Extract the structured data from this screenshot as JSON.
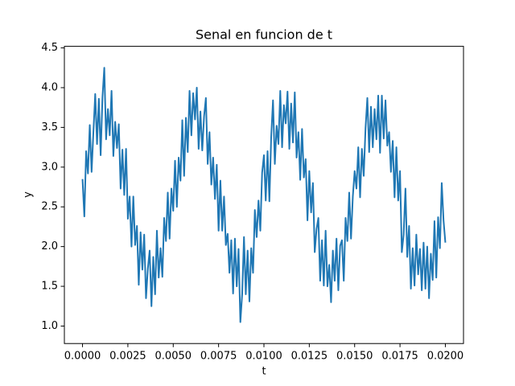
{
  "chart_data": {
    "type": "line",
    "title": "Senal en funcion de t",
    "xlabel": "t",
    "ylabel": "y",
    "x": [
      0,
      0.0001,
      0.0002,
      0.0003,
      0.0004,
      0.0005,
      0.0006,
      0.0007,
      0.0008,
      0.0009,
      0.001,
      0.0011,
      0.0012,
      0.0013,
      0.0014,
      0.0015,
      0.0016,
      0.0017,
      0.0018,
      0.0019,
      0.002,
      0.0021,
      0.0022,
      0.0023,
      0.0024,
      0.0025,
      0.0026,
      0.0027,
      0.0028,
      0.0029,
      0.003,
      0.0031,
      0.0032,
      0.0033,
      0.0034,
      0.0035,
      0.0036,
      0.0037,
      0.0038,
      0.0039,
      0.004,
      0.0041,
      0.0042,
      0.0043,
      0.0044,
      0.0045,
      0.0046,
      0.0047,
      0.0048,
      0.0049,
      0.005,
      0.0051,
      0.0052,
      0.0053,
      0.0054,
      0.0055,
      0.0056,
      0.0057,
      0.0058,
      0.0059,
      0.006,
      0.0061,
      0.0062,
      0.0063,
      0.0064,
      0.0065,
      0.0066,
      0.0067,
      0.0068,
      0.0069,
      0.007,
      0.0071,
      0.0072,
      0.0073,
      0.0074,
      0.0075,
      0.0076,
      0.0077,
      0.0078,
      0.0079,
      0.008,
      0.0081,
      0.0082,
      0.0083,
      0.0084,
      0.0085,
      0.0086,
      0.0087,
      0.0088,
      0.0089,
      0.009,
      0.0091,
      0.0092,
      0.0093,
      0.0094,
      0.0095,
      0.0096,
      0.0097,
      0.0098,
      0.0099,
      0.01,
      0.0101,
      0.0102,
      0.0103,
      0.0104,
      0.0105,
      0.0106,
      0.0107,
      0.0108,
      0.0109,
      0.011,
      0.0111,
      0.0112,
      0.0113,
      0.0114,
      0.0115,
      0.0116,
      0.0117,
      0.0118,
      0.0119,
      0.012,
      0.0121,
      0.0122,
      0.0123,
      0.0124,
      0.0125,
      0.0126,
      0.0127,
      0.0128,
      0.0129,
      0.013,
      0.0131,
      0.0132,
      0.0133,
      0.0134,
      0.0135,
      0.0136,
      0.0137,
      0.0138,
      0.0139,
      0.014,
      0.0141,
      0.0142,
      0.0143,
      0.0144,
      0.0145,
      0.0146,
      0.0147,
      0.0148,
      0.0149,
      0.015,
      0.0151,
      0.0152,
      0.0153,
      0.0154,
      0.0155,
      0.0156,
      0.0157,
      0.0158,
      0.0159,
      0.016,
      0.0161,
      0.0162,
      0.0163,
      0.0164,
      0.0165,
      0.0166,
      0.0167,
      0.0168,
      0.0169,
      0.017,
      0.0171,
      0.0172,
      0.0173,
      0.0174,
      0.0175,
      0.0176,
      0.0177,
      0.0178,
      0.0179,
      0.018,
      0.0181,
      0.0182,
      0.0183,
      0.0184,
      0.0185,
      0.0186,
      0.0187,
      0.0188,
      0.0189,
      0.019,
      0.0191,
      0.0192,
      0.0193,
      0.0194,
      0.0195,
      0.0196,
      0.0197,
      0.0198,
      0.0199,
      0.02
    ],
    "series": [
      {
        "color": "#1f77b4",
        "values": [
          2.85,
          2.38,
          3.2,
          2.92,
          3.53,
          2.94,
          3.44,
          3.92,
          3.29,
          3.86,
          3.15,
          3.88,
          4.25,
          3.35,
          3.73,
          3.4,
          3.96,
          3.14,
          3.57,
          3.24,
          3.54,
          2.73,
          3.22,
          2.65,
          3.23,
          2.35,
          2.63,
          2.0,
          2.63,
          2.02,
          2.26,
          1.52,
          2.18,
          1.71,
          2.15,
          1.35,
          1.72,
          1.95,
          1.25,
          1.87,
          1.4,
          2.2,
          1.61,
          1.98,
          1.62,
          2.36,
          2.07,
          2.68,
          2.1,
          2.73,
          2.45,
          3.08,
          2.5,
          3.12,
          2.83,
          3.59,
          2.89,
          3.62,
          3.19,
          3.96,
          3.4,
          3.93,
          3.6,
          4.0,
          3.23,
          3.7,
          3.21,
          3.64,
          3.87,
          3.04,
          3.44,
          2.78,
          3.12,
          2.6,
          3.03,
          2.2,
          2.83,
          2.2,
          2.63,
          2.02,
          2.16,
          1.67,
          2.08,
          1.41,
          2.1,
          1.5,
          1.97,
          1.05,
          1.4,
          2.12,
          1.4,
          1.95,
          1.31,
          1.98,
          1.67,
          2.46,
          2.12,
          2.58,
          2.2,
          2.93,
          3.15,
          2.58,
          3.2,
          2.57,
          3.38,
          3.84,
          3.04,
          3.52,
          3.29,
          3.96,
          3.25,
          3.78,
          3.55,
          3.95,
          3.23,
          3.8,
          3.31,
          3.94,
          3.12,
          3.44,
          2.84,
          3.48,
          2.87,
          3.1,
          2.33,
          2.95,
          2.43,
          2.8,
          1.93,
          2.22,
          2.36,
          1.57,
          2.08,
          1.51,
          2.2,
          1.5,
          1.77,
          1.3,
          1.95,
          1.57,
          2.1,
          1.45,
          2.01,
          2.08,
          1.57,
          2.36,
          2.07,
          2.68,
          2.1,
          2.63,
          2.95,
          2.73,
          3.25,
          2.62,
          3.23,
          2.89,
          3.49,
          3.87,
          3.19,
          3.76,
          3.25,
          3.73,
          3.35,
          3.9,
          3.18,
          3.9,
          3.36,
          3.84,
          3.27,
          3.44,
          2.94,
          3.33,
          2.62,
          3.25,
          2.58,
          2.95,
          1.93,
          2.15,
          2.73,
          1.87,
          2.26,
          1.47,
          1.98,
          1.51,
          2.15,
          1.65,
          1.97,
          1.45,
          2.05,
          1.47,
          2.0,
          1.35,
          1.91,
          1.58,
          2.32,
          1.61,
          2.37,
          1.98,
          2.8,
          2.33,
          2.05
        ]
      }
    ],
    "xlim": [
      -0.001,
      0.021
    ],
    "xticks": [
      {
        "value": 0,
        "label": "0.0000"
      },
      {
        "value": 0.0025,
        "label": "0.0025"
      },
      {
        "value": 0.005,
        "label": "0.0050"
      },
      {
        "value": 0.0075,
        "label": "0.0075"
      },
      {
        "value": 0.01,
        "label": "0.0100"
      },
      {
        "value": 0.0125,
        "label": "0.0125"
      },
      {
        "value": 0.015,
        "label": "0.0150"
      },
      {
        "value": 0.0175,
        "label": "0.0175"
      },
      {
        "value": 0.02,
        "label": "0.0200"
      }
    ],
    "ylim": [
      0.78,
      4.52
    ],
    "yticks": [
      {
        "value": 1,
        "label": "1.0"
      },
      1.5,
      {
        "value": 2,
        "label": "2.0"
      },
      2.5,
      {
        "value": 3,
        "label": "3.0"
      },
      3.5,
      {
        "value": 4,
        "label": "4.0"
      },
      4.5
    ]
  }
}
